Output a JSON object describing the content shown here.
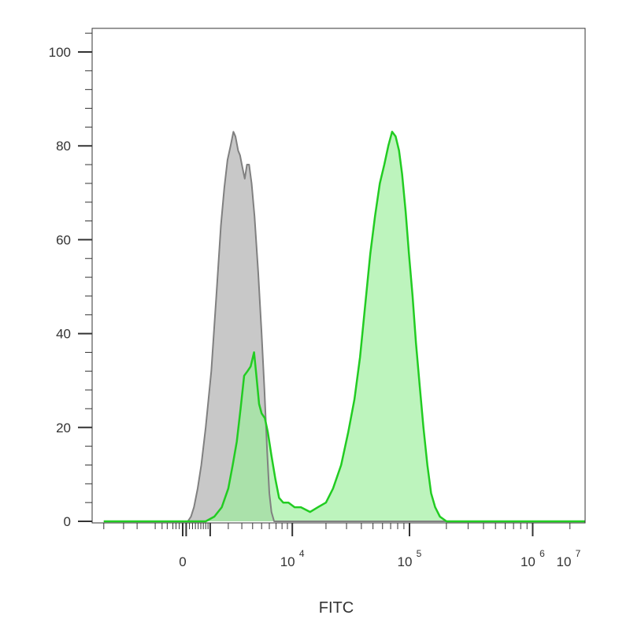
{
  "chart_data": {
    "type": "area",
    "xlabel": "FITC",
    "ylabel": "",
    "ylim": [
      0,
      105
    ],
    "x_scale": "biexponential",
    "grid": false,
    "legend": "none",
    "y_ticks": [
      {
        "value": 0,
        "label": "0"
      },
      {
        "value": 20,
        "label": "20"
      },
      {
        "value": 40,
        "label": "40"
      },
      {
        "value": 60,
        "label": "60"
      },
      {
        "value": 80,
        "label": "80"
      },
      {
        "value": 100,
        "label": "100"
      }
    ],
    "x_ticks": [
      {
        "value": 0,
        "base": "0",
        "exp": ""
      },
      {
        "value": 10000,
        "base": "10",
        "exp": "4"
      },
      {
        "value": 100000,
        "base": "10",
        "exp": "5"
      },
      {
        "value": 1000000,
        "base": "10",
        "exp": "6"
      },
      {
        "value": 10000000,
        "base": "10",
        "exp": "7"
      }
    ],
    "series": [
      {
        "color": "#808080",
        "fill": "#c8c8c8",
        "points": [
          [
            -5000,
            0
          ],
          [
            150,
            0
          ],
          [
            250,
            1
          ],
          [
            350,
            3
          ],
          [
            480,
            7
          ],
          [
            620,
            12
          ],
          [
            800,
            20
          ],
          [
            1050,
            32
          ],
          [
            1300,
            48
          ],
          [
            1550,
            63
          ],
          [
            1750,
            71
          ],
          [
            1950,
            77
          ],
          [
            2150,
            80
          ],
          [
            2350,
            83
          ],
          [
            2500,
            82
          ],
          [
            2700,
            79
          ],
          [
            2850,
            78
          ],
          [
            3000,
            76
          ],
          [
            3250,
            73
          ],
          [
            3450,
            76
          ],
          [
            3650,
            76
          ],
          [
            3900,
            72
          ],
          [
            4200,
            65
          ],
          [
            4600,
            53
          ],
          [
            5000,
            40
          ],
          [
            5350,
            28
          ],
          [
            5700,
            15
          ],
          [
            6000,
            6
          ],
          [
            6300,
            2
          ],
          [
            6700,
            0
          ],
          [
            10000000,
            0
          ]
        ]
      },
      {
        "color": "#22cc22",
        "fill": "#99ee99",
        "points": [
          [
            -5000,
            0
          ],
          [
            800,
            0
          ],
          [
            1200,
            1
          ],
          [
            1600,
            3
          ],
          [
            2000,
            7
          ],
          [
            2300,
            12
          ],
          [
            2600,
            17
          ],
          [
            2900,
            24
          ],
          [
            3200,
            31
          ],
          [
            3500,
            32
          ],
          [
            3800,
            33
          ],
          [
            4150,
            36
          ],
          [
            4400,
            31
          ],
          [
            4700,
            25
          ],
          [
            5000,
            23
          ],
          [
            5400,
            22
          ],
          [
            5800,
            19
          ],
          [
            6300,
            14
          ],
          [
            6900,
            9
          ],
          [
            7500,
            5
          ],
          [
            8200,
            4
          ],
          [
            9200,
            4
          ],
          [
            10500,
            3
          ],
          [
            12000,
            3
          ],
          [
            14500,
            2
          ],
          [
            17000,
            3
          ],
          [
            20000,
            4
          ],
          [
            23000,
            7
          ],
          [
            27000,
            12
          ],
          [
            31000,
            19
          ],
          [
            35000,
            26
          ],
          [
            39000,
            35
          ],
          [
            43000,
            46
          ],
          [
            47500,
            57
          ],
          [
            52000,
            65
          ],
          [
            57000,
            72
          ],
          [
            62000,
            76
          ],
          [
            67000,
            80
          ],
          [
            72000,
            83
          ],
          [
            77000,
            82
          ],
          [
            82000,
            79
          ],
          [
            87000,
            74
          ],
          [
            93000,
            66
          ],
          [
            99000,
            57
          ],
          [
            106000,
            48
          ],
          [
            113000,
            38
          ],
          [
            121000,
            29
          ],
          [
            130000,
            20
          ],
          [
            140000,
            12
          ],
          [
            150000,
            6
          ],
          [
            162000,
            3
          ],
          [
            177000,
            1
          ],
          [
            200000,
            0
          ],
          [
            10000000,
            0
          ]
        ]
      }
    ]
  }
}
